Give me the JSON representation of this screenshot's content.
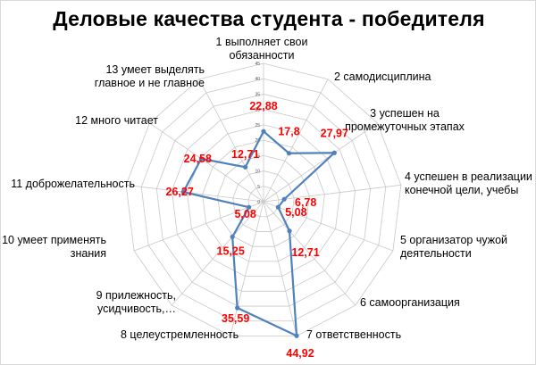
{
  "title": "Деловые качества студента - победителя",
  "chart_data": {
    "type": "radar",
    "title": "Деловые качества студента - победителя",
    "rlim": [
      0,
      45
    ],
    "rticks": [
      0,
      5,
      10,
      15,
      20,
      25,
      30,
      35,
      40,
      45
    ],
    "grid": true,
    "legend": "none",
    "categories": [
      "1 выполняет свои обязанности",
      "2 самодисциплина",
      "3 успешен на промежуточных этапах",
      "4 успешен в реализации конечной цели, учебы",
      "5 организатор чужой деятельности",
      "6 самоорганизация",
      "7 ответственность",
      "8 целеустремленность",
      "9 прилежность, усидчивость,…",
      "10 умеет применять знания",
      "11 доброжелательность",
      "12 много читает",
      "13 умеет выделять главное и не главное"
    ],
    "category_lines": [
      [
        "1 выполняет свои",
        "обязанности"
      ],
      [
        "2 самодисциплина"
      ],
      [
        "3 успешен на",
        "промежуточных этапах"
      ],
      [
        "4 успешен в реализации",
        "конечной цели, учебы"
      ],
      [
        "5 организатор чужой",
        "деятельности"
      ],
      [
        "6 самоорганизация"
      ],
      [
        "7 ответственность"
      ],
      [
        "8 целеустремленность"
      ],
      [
        "9 прилежность,",
        "усидчивость,…"
      ],
      [
        "10 умеет применять",
        "знания"
      ],
      [
        "11 доброжелательность"
      ],
      [
        "12 много читает"
      ],
      [
        "13 умеет выделять",
        "главное и не главное"
      ]
    ],
    "values": [
      22.88,
      17.8,
      27.97,
      6.78,
      5.08,
      12.71,
      44.92,
      35.59,
      15.25,
      5.08,
      26.27,
      24.58,
      12.71
    ],
    "value_labels": [
      "22,88",
      "17,8",
      "27,97",
      "6,78",
      "5,08",
      "12,71",
      "44,92",
      "35,59",
      "15,25",
      "5,08",
      "26,27",
      "24,58",
      "12,71"
    ],
    "colors": {
      "series": "#4f81bd",
      "data_labels": "#ff0000",
      "grid": "#c8c8c8"
    }
  }
}
